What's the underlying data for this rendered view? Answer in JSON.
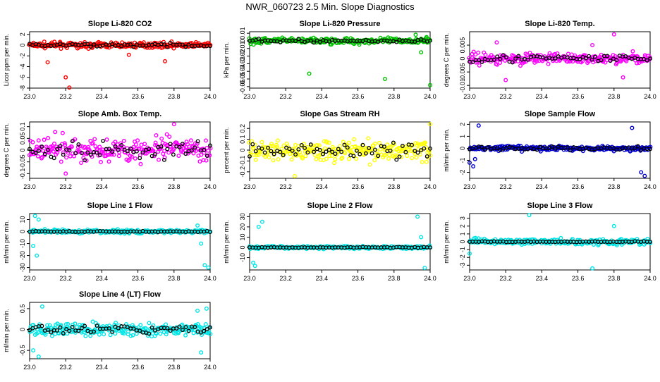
{
  "title": "NWR_060723  2.5 Min. Slope Diagnostics",
  "chart_data": [
    {
      "type": "scatter",
      "title": "Slope Li-820 CO2",
      "ylabel": "Licor ppm per min.",
      "color": "#ff0000",
      "xlim": [
        23.0,
        24.0
      ],
      "ylim": [
        -8,
        2.5
      ],
      "yticks": [
        -8,
        -6,
        -4,
        -2,
        0,
        2
      ],
      "spread": 0.5,
      "black_spread": 0.3,
      "outliers": [
        [
          23.1,
          -3.2
        ],
        [
          23.2,
          -6.0
        ],
        [
          23.22,
          -7.9
        ],
        [
          23.55,
          -1.8
        ],
        [
          23.75,
          -3.0
        ]
      ]
    },
    {
      "type": "scatter",
      "title": "Slope Li-820 Pressure",
      "ylabel": "kPa per min.",
      "color": "#00c000",
      "xlim": [
        23.0,
        24.0
      ],
      "ylim": [
        -0.062,
        0.012
      ],
      "yticks": [
        -0.06,
        -0.05,
        -0.04,
        -0.03,
        -0.02,
        -0.01,
        0.0,
        0.01
      ],
      "spread": 0.004,
      "black_spread": 0.002,
      "outliers": [
        [
          23.33,
          -0.043
        ],
        [
          23.75,
          -0.05
        ],
        [
          24.0,
          -0.058
        ],
        [
          23.95,
          -0.015
        ],
        [
          23.92,
          0.008
        ],
        [
          23.98,
          0.005
        ]
      ]
    },
    {
      "type": "scatter",
      "title": "Slope Li-820 Temp.",
      "ylabel": "degrees C per min.",
      "color": "#ff00ff",
      "xlim": [
        23.0,
        24.0
      ],
      "ylim": [
        -0.011,
        0.01
      ],
      "yticks": [
        -0.01,
        -0.005,
        0.0,
        0.005
      ],
      "spread": 0.002,
      "black_spread": 0.0015,
      "outliers": [
        [
          23.15,
          0.006
        ],
        [
          23.2,
          -0.008
        ],
        [
          23.8,
          0.009
        ],
        [
          23.85,
          -0.007
        ],
        [
          23.68,
          0.005
        ]
      ]
    },
    {
      "type": "scatter",
      "title": "Slope Amb. Box Temp.",
      "ylabel": "degrees C per min.",
      "color": "#ff00ff",
      "xlim": [
        23.0,
        24.0
      ],
      "ylim": [
        -0.12,
        0.12
      ],
      "yticks": [
        -0.1,
        -0.05,
        0.0,
        0.05,
        0.1
      ],
      "spread": 0.05,
      "black_spread": 0.04,
      "outliers": [
        [
          23.8,
          0.11
        ],
        [
          23.2,
          -0.1
        ]
      ]
    },
    {
      "type": "scatter",
      "title": "Slope Gas Stream RH",
      "ylabel": "percent per min.",
      "color": "#ffff00",
      "xlim": [
        23.0,
        24.0
      ],
      "ylim": [
        -0.26,
        0.26
      ],
      "yticks": [
        -0.2,
        -0.1,
        0.0,
        0.1,
        0.2
      ],
      "spread": 0.1,
      "black_spread": 0.08,
      "outliers": [
        [
          23.25,
          -0.24
        ],
        [
          24.0,
          0.24
        ]
      ]
    },
    {
      "type": "scatter",
      "title": "Slope Sample Flow",
      "ylabel": "ml/min per min.",
      "color": "#0000cc",
      "xlim": [
        23.0,
        24.0
      ],
      "ylim": [
        -2.5,
        2.2
      ],
      "yticks": [
        -2,
        -1,
        0,
        1,
        2
      ],
      "spread": 0.2,
      "black_spread": 0.15,
      "outliers": [
        [
          23.05,
          1.9
        ],
        [
          23.02,
          -1.5
        ],
        [
          23.0,
          -1.2
        ],
        [
          23.9,
          1.7
        ],
        [
          23.95,
          -2.0
        ],
        [
          23.97,
          -2.3
        ],
        [
          23.03,
          -0.9
        ]
      ]
    },
    {
      "type": "scatter",
      "title": "Slope Line 1 Flow",
      "ylabel": "ml/min per min.",
      "color": "#00e6e6",
      "xlim": [
        23.0,
        24.0
      ],
      "ylim": [
        -32,
        15
      ],
      "yticks": [
        -30,
        -20,
        -10,
        0,
        10
      ],
      "spread": 1.5,
      "black_spread": 0.4,
      "outliers": [
        [
          23.02,
          -12
        ],
        [
          23.04,
          -20
        ],
        [
          23.03,
          13
        ],
        [
          23.05,
          10
        ],
        [
          23.97,
          -28
        ],
        [
          23.99,
          -30
        ],
        [
          23.95,
          -10
        ],
        [
          23.93,
          5
        ]
      ]
    },
    {
      "type": "scatter",
      "title": "Slope Line 2 Flow",
      "ylabel": "ml/min per min.",
      "color": "#00e6e6",
      "xlim": [
        23.0,
        24.0
      ],
      "ylim": [
        -22,
        33
      ],
      "yticks": [
        -10,
        0,
        10,
        20,
        30
      ],
      "spread": 1.5,
      "black_spread": 0.4,
      "outliers": [
        [
          23.02,
          -15
        ],
        [
          23.03,
          -18
        ],
        [
          23.05,
          20
        ],
        [
          23.07,
          25
        ],
        [
          23.95,
          10
        ],
        [
          23.97,
          -20
        ],
        [
          23.93,
          30
        ]
      ]
    },
    {
      "type": "scatter",
      "title": "Slope Line 3 Flow",
      "ylabel": "ml/min per min.",
      "color": "#00e6e6",
      "xlim": [
        23.0,
        24.0
      ],
      "ylim": [
        -3.6,
        3.6
      ],
      "yticks": [
        -3,
        -2,
        -1,
        0,
        1,
        2,
        3
      ],
      "spread": 0.4,
      "black_spread": 0.05,
      "outliers": [
        [
          23.33,
          3.4
        ],
        [
          23.68,
          -3.4
        ],
        [
          23.0,
          -1.5
        ],
        [
          23.8,
          2.0
        ]
      ]
    },
    {
      "type": "scatter",
      "title": "Slope Line 4 (LT) Flow",
      "ylabel": "ml/min per min.",
      "color": "#00e6e6",
      "xlim": [
        23.0,
        24.0
      ],
      "ylim": [
        -0.7,
        0.65
      ],
      "yticks": [
        -0.5,
        0.0,
        0.5
      ],
      "spread": 0.15,
      "black_spread": 0.1,
      "outliers": [
        [
          23.07,
          0.55
        ],
        [
          23.02,
          -0.5
        ],
        [
          23.95,
          -0.55
        ],
        [
          23.93,
          0.45
        ],
        [
          23.05,
          -0.65
        ],
        [
          23.98,
          0.5
        ]
      ]
    }
  ],
  "xticks": [
    23.0,
    23.2,
    23.4,
    23.6,
    23.8,
    24.0
  ]
}
